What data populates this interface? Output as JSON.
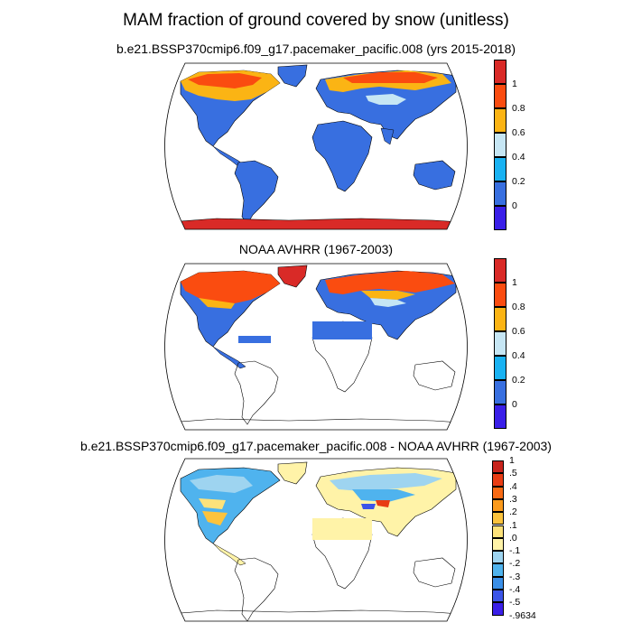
{
  "title": "MAM fraction of ground covered by snow (unitless)",
  "panels": [
    {
      "subtitle": "b.e21.BSSP370cmip6.f09_g17.pacemaker_pacific.008 (yrs 2015-2018)",
      "colorbar": {
        "colors": [
          "#3a1fe8",
          "#386fe0",
          "#19b2f2",
          "#c6e6f4",
          "#fbb414",
          "#fa4c10",
          "#d92a27"
        ],
        "labels": [
          "0",
          "0.2",
          "0.4",
          "0.6",
          "0.8",
          "1"
        ]
      }
    },
    {
      "subtitle": "NOAA AVHRR (1967-2003)",
      "colorbar": {
        "colors": [
          "#3a1fe8",
          "#386fe0",
          "#19b2f2",
          "#c6e6f4",
          "#fbb414",
          "#fa4c10",
          "#d92a27"
        ],
        "labels": [
          "0",
          "0.2",
          "0.4",
          "0.6",
          "0.8",
          "1"
        ]
      }
    },
    {
      "subtitle": "b.e21.BSSP370cmip6.f09_g17.pacemaker_pacific.008 - NOAA AVHRR (1967-2003)",
      "colorbar": {
        "colors": [
          "#3a1fe8",
          "#3b55e8",
          "#3a8fe8",
          "#4fb3ee",
          "#9ed4f0",
          "#fff3a8",
          "#fde27a",
          "#fcc33d",
          "#fb9a1c",
          "#f86a14",
          "#e83c14",
          "#c8241c"
        ],
        "labels": [
          "-.9634",
          "-.5",
          "-.4",
          "-.3",
          "-.2",
          "-.1",
          ".0",
          ".1",
          ".2",
          ".3",
          ".4",
          ".5",
          "1"
        ]
      }
    }
  ]
}
